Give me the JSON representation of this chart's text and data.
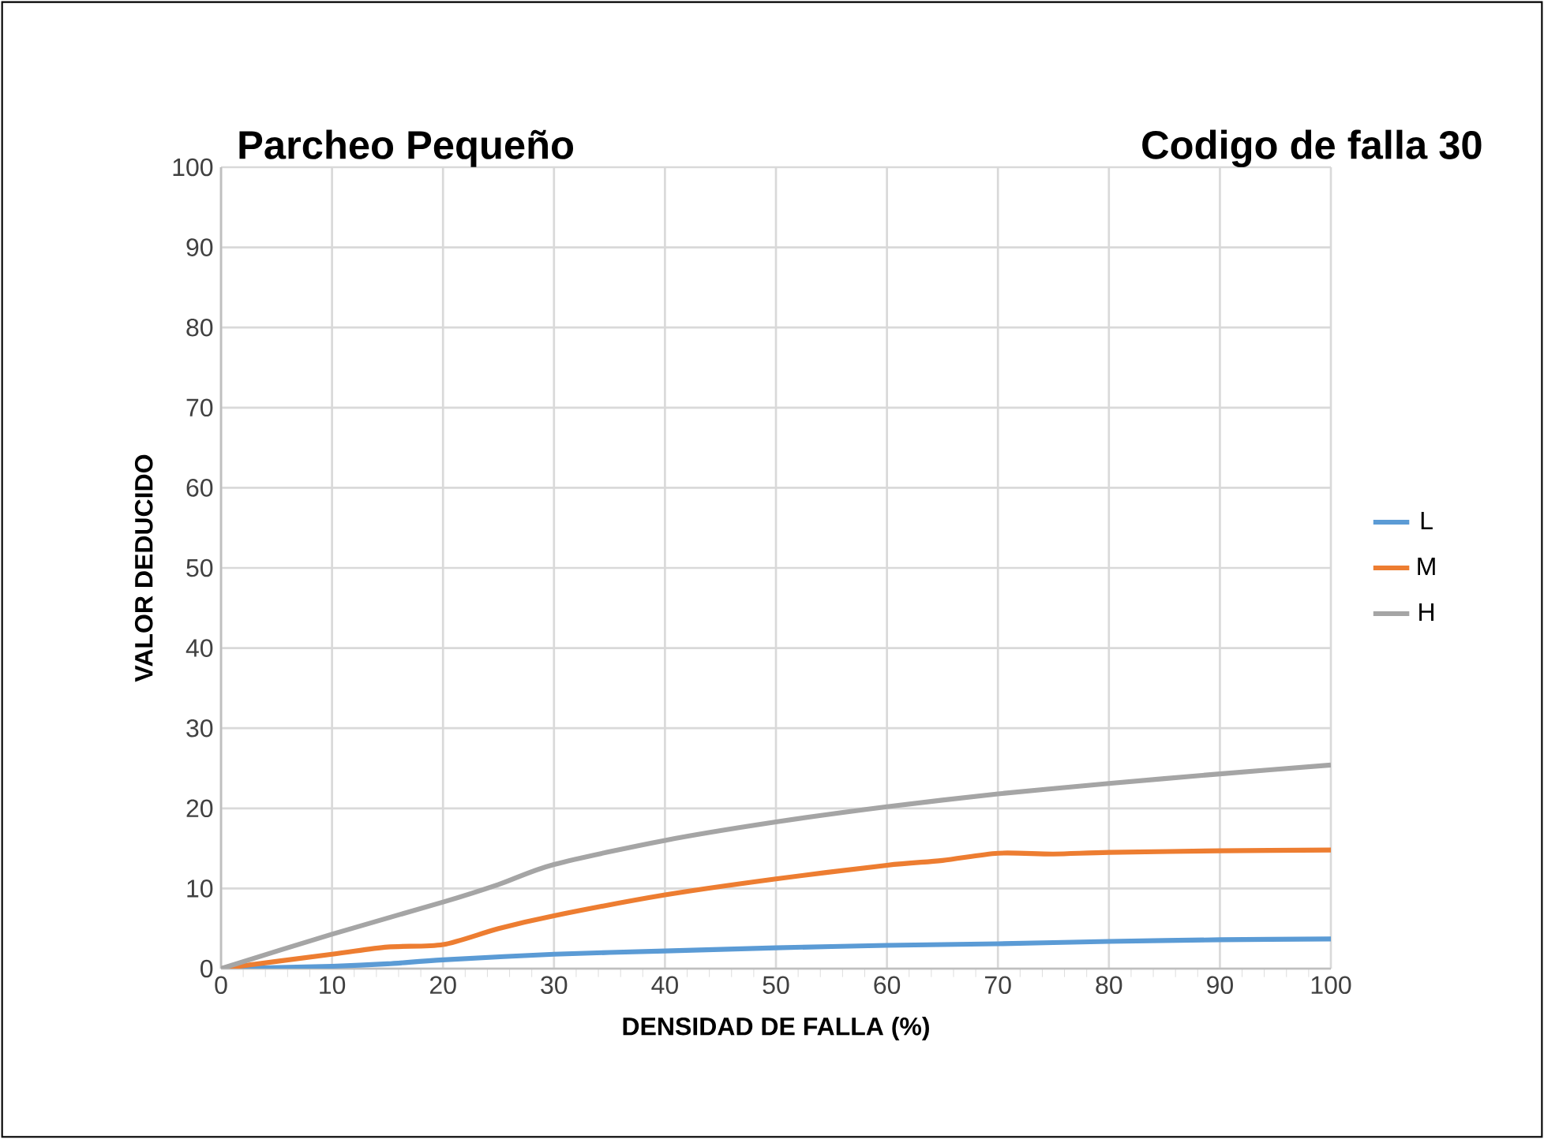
{
  "chart_data": {
    "type": "line",
    "title": "Parcheo Pequeño",
    "subtitle": "Codigo de falla 30",
    "xlabel": "DENSIDAD DE FALLA (%)",
    "ylabel": "VALOR DEDUCIDO",
    "series": [
      {
        "name": "L",
        "color": "#5b9bd5",
        "x": [
          0,
          10,
          15,
          20,
          30,
          40,
          50,
          60,
          70,
          80,
          90,
          100
        ],
        "values": [
          0,
          0.3,
          0.6,
          1.1,
          1.8,
          2.2,
          2.6,
          2.9,
          3.1,
          3.4,
          3.6,
          3.7
        ]
      },
      {
        "name": "M",
        "color": "#ed7d31",
        "x": [
          0,
          10,
          15,
          20,
          25,
          30,
          40,
          50,
          60,
          65,
          70,
          75,
          80,
          90,
          100
        ],
        "values": [
          0,
          1.8,
          2.7,
          3,
          5,
          6.6,
          9.2,
          11.2,
          12.9,
          13.5,
          14.4,
          14.3,
          14.5,
          14.7,
          14.8
        ]
      },
      {
        "name": "H",
        "color": "#a5a5a5",
        "x": [
          0,
          10,
          20,
          25,
          30,
          40,
          50,
          60,
          70,
          80,
          90,
          100
        ],
        "values": [
          0,
          4.3,
          8.3,
          10.5,
          13,
          16,
          18.3,
          20.2,
          21.8,
          23.1,
          24.3,
          25.4
        ]
      }
    ],
    "xlim": [
      0,
      100
    ],
    "ylim": [
      0,
      100
    ],
    "xticks": [
      0,
      10,
      20,
      30,
      40,
      50,
      60,
      70,
      80,
      90,
      100
    ],
    "yticks": [
      0,
      10,
      20,
      30,
      40,
      50,
      60,
      70,
      80,
      90,
      100
    ],
    "grid": true,
    "legend": "right",
    "marker": "none",
    "line_style": "solid"
  }
}
